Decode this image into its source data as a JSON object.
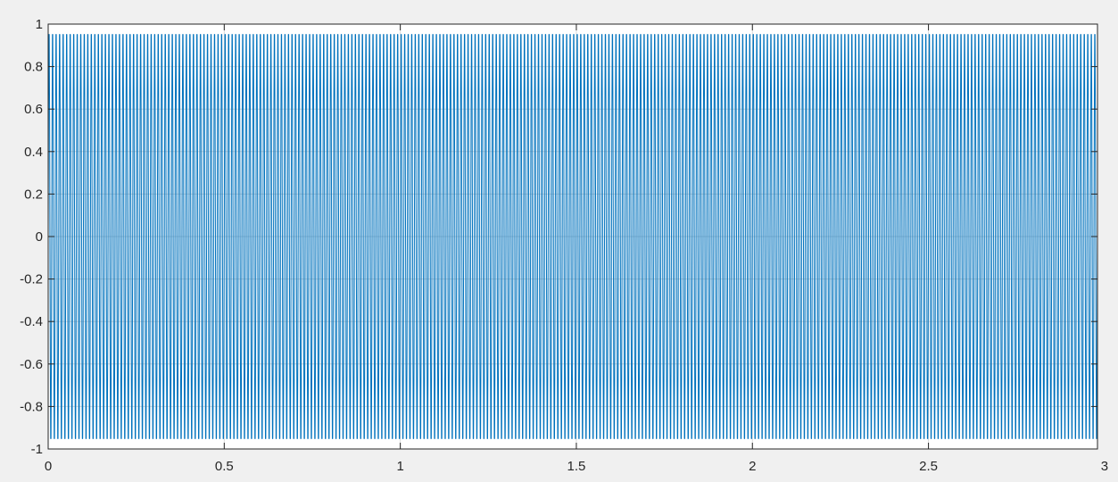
{
  "chart_data": {
    "type": "line",
    "title": "",
    "xlabel": "",
    "ylabel": "",
    "xlim": [
      0,
      2.98
    ],
    "ylim": [
      -1,
      1
    ],
    "x_ticks": [
      0,
      0.5,
      1,
      1.5,
      2,
      2.5,
      3
    ],
    "x_tick_labels": [
      "0",
      "0.5",
      "1",
      "1.5",
      "2",
      "2.5",
      "3"
    ],
    "y_ticks": [
      1,
      0.8,
      0.6,
      0.4,
      0.2,
      0,
      -0.2,
      -0.4,
      -0.6,
      -0.8,
      -1
    ],
    "y_tick_labels": [
      "1",
      "0.8",
      "0.6",
      "0.4",
      "0.2",
      "0",
      "-0.2",
      "-0.4",
      "-0.6",
      "-0.8",
      "-1"
    ],
    "grid": true,
    "legend": "none",
    "series": [
      {
        "color": "#0072bd",
        "description_values": {
          "period": 0.01,
          "amplitude_peaks": 0.951,
          "sample_interval": 0.001,
          "x_start": 0,
          "x_end": 2.98
        },
        "y_cycle": [
          0,
          0.588,
          0.951,
          0.951,
          0.588,
          0,
          -0.588,
          -0.951,
          -0.951,
          -0.588
        ]
      }
    ],
    "colors": {
      "background": "#f0f0f0",
      "axes_background": "#ffffff",
      "axes_edge": "#262626",
      "grid": "#d9d9d9",
      "line": "#0072bd"
    }
  }
}
